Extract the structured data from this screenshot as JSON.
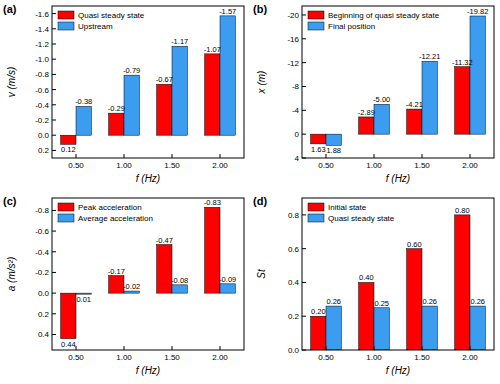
{
  "chart_data": [
    {
      "type": "bar",
      "title": "(a)",
      "x_label": "f (Hz)",
      "y_label": "v (m/s)",
      "categories": [
        "0.50",
        "1.00",
        "1.50",
        "2.00"
      ],
      "series": [
        {
          "name": "Quasi steady state",
          "color": "#ff0000",
          "values": [
            0.12,
            -0.29,
            -0.67,
            -1.07
          ]
        },
        {
          "name": "Upstream",
          "color": "#3c9cf0",
          "values": [
            -0.38,
            -0.79,
            -1.17,
            -1.57
          ]
        }
      ],
      "ylim": [
        0.3,
        -1.7
      ],
      "yticks": [
        0.2,
        {
          "value": 0,
          "label": "0.0"
        },
        -0.2,
        -0.4,
        -0.6,
        -0.8,
        {
          "value": -1,
          "label": "-1.0"
        },
        -1.2,
        -1.4,
        -1.6
      ],
      "legend": "upper left",
      "data_labels": true,
      "grid": false
    },
    {
      "type": "bar",
      "title": "(b)",
      "x_label": "f (Hz)",
      "y_label": "x (m)",
      "categories": [
        "0.50",
        "1.00",
        "1.50",
        "2.00"
      ],
      "series": [
        {
          "name": "Beginning of quasi steady state",
          "color": "#ff0000",
          "values": [
            1.63,
            -2.89,
            -4.21,
            -11.32
          ]
        },
        {
          "name": "Final position",
          "color": "#3c9cf0",
          "values": [
            1.88,
            -5.0,
            -12.21,
            -19.82
          ],
          "value_labels": [
            "1.88",
            "-5.00",
            "-12.21",
            "-19.82"
          ]
        }
      ],
      "ylim": [
        4,
        -21.5
      ],
      "yticks": [
        4,
        0,
        -4,
        -8,
        -12,
        -16,
        -20
      ],
      "legend": "upper left",
      "data_labels": true,
      "grid": false
    },
    {
      "type": "bar",
      "title": "(c)",
      "x_label": "f (Hz)",
      "y_label": "a (m/s²)",
      "categories": [
        "0.50",
        "1.00",
        "1.50",
        "2.00"
      ],
      "series": [
        {
          "name": "Peak acceleration",
          "color": "#ff0000",
          "values": [
            0.44,
            -0.17,
            -0.47,
            -0.83
          ]
        },
        {
          "name": "Average acceleration",
          "color": "#3c9cf0",
          "values": [
            0.01,
            -0.02,
            -0.08,
            -0.09
          ]
        }
      ],
      "ylim": [
        0.55,
        -0.92
      ],
      "yticks": [
        0.4,
        0.2,
        {
          "value": 0,
          "label": "0.0"
        },
        -0.2,
        -0.4,
        -0.6,
        -0.8
      ],
      "legend": "upper left",
      "data_labels": true,
      "grid": false
    },
    {
      "type": "bar",
      "title": "(d)",
      "x_label": "f (Hz)",
      "y_label": "St",
      "categories": [
        "0.50",
        "1.00",
        "1.50",
        "2.00"
      ],
      "series": [
        {
          "name": "Initial state",
          "color": "#ff0000",
          "values": [
            0.2,
            0.4,
            0.6,
            0.8
          ],
          "value_labels": [
            "0.20",
            "0.40",
            "0.60",
            "0.80"
          ]
        },
        {
          "name": "Quasi steady state",
          "color": "#3c9cf0",
          "values": [
            0.26,
            0.25,
            0.26,
            0.26
          ]
        }
      ],
      "ylim": [
        0,
        0.9
      ],
      "yticks": [
        {
          "value": 0,
          "label": "0.0"
        },
        0.2,
        0.4,
        0.6,
        0.8
      ],
      "legend": "upper left",
      "data_labels": true,
      "grid": false
    }
  ]
}
